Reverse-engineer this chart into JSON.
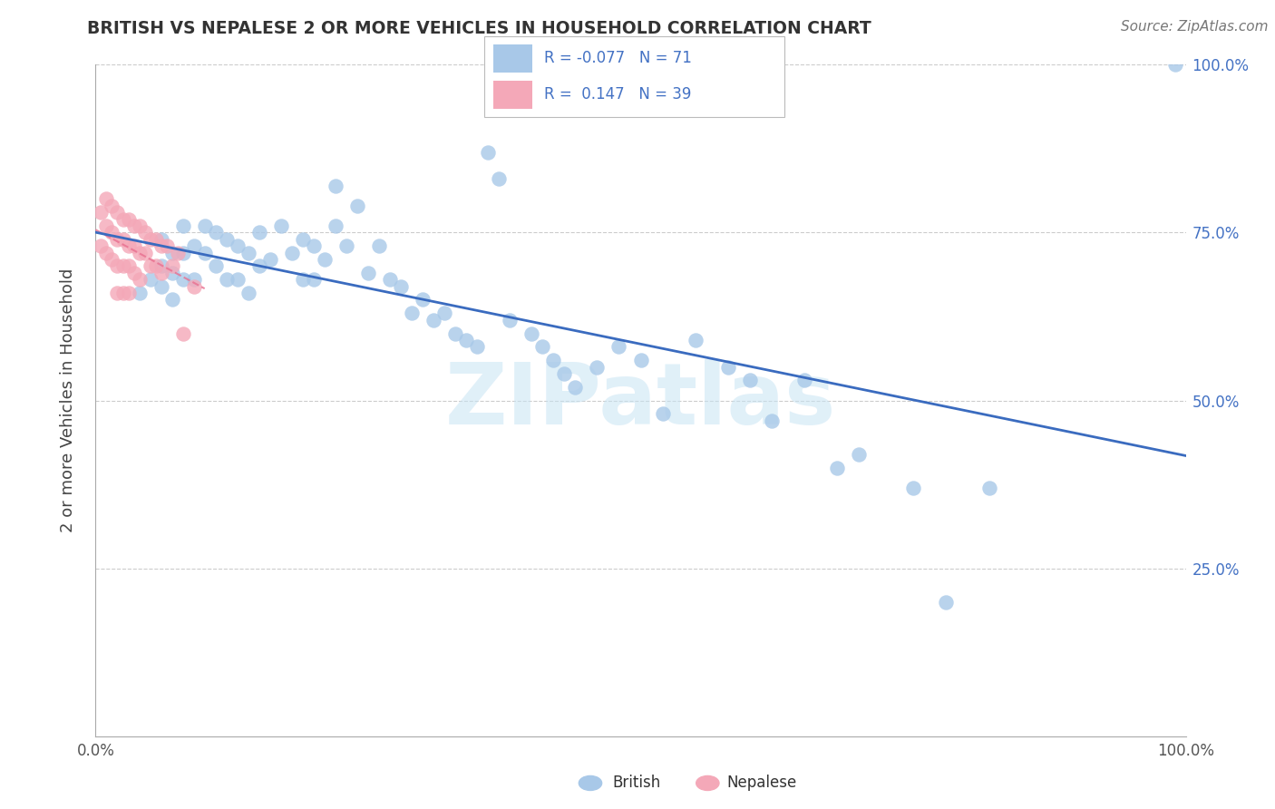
{
  "title": "BRITISH VS NEPALESE 2 OR MORE VEHICLES IN HOUSEHOLD CORRELATION CHART",
  "source": "Source: ZipAtlas.com",
  "ylabel": "2 or more Vehicles in Household",
  "xlim": [
    0,
    1
  ],
  "ylim": [
    0,
    1
  ],
  "british_color": "#a8c8e8",
  "british_edge_color": "#a8c8e8",
  "nepalese_color": "#f4a8b8",
  "nepalese_edge_color": "#f4a8b8",
  "british_line_color": "#3a6bbf",
  "nepalese_line_color": "#e87090",
  "british_R": -0.077,
  "british_N": 71,
  "nepalese_R": 0.147,
  "nepalese_N": 39,
  "watermark_text": "ZIPatlas",
  "watermark_color": "#c8e4f4",
  "grid_color": "#cccccc",
  "right_tick_color": "#4472c4",
  "legend_text_color": "#4472c4",
  "title_color": "#333333",
  "source_color": "#777777",
  "british_x": [
    0.04,
    0.05,
    0.06,
    0.06,
    0.06,
    0.07,
    0.07,
    0.07,
    0.08,
    0.08,
    0.08,
    0.09,
    0.09,
    0.1,
    0.1,
    0.11,
    0.11,
    0.12,
    0.12,
    0.13,
    0.13,
    0.14,
    0.14,
    0.15,
    0.15,
    0.16,
    0.17,
    0.18,
    0.19,
    0.19,
    0.2,
    0.2,
    0.21,
    0.22,
    0.22,
    0.23,
    0.24,
    0.25,
    0.26,
    0.27,
    0.28,
    0.29,
    0.3,
    0.31,
    0.32,
    0.33,
    0.34,
    0.35,
    0.36,
    0.37,
    0.38,
    0.4,
    0.41,
    0.42,
    0.43,
    0.44,
    0.46,
    0.48,
    0.5,
    0.52,
    0.55,
    0.58,
    0.6,
    0.62,
    0.65,
    0.68,
    0.7,
    0.75,
    0.78,
    0.82,
    0.99
  ],
  "british_y": [
    0.66,
    0.68,
    0.74,
    0.7,
    0.67,
    0.72,
    0.69,
    0.65,
    0.76,
    0.72,
    0.68,
    0.73,
    0.68,
    0.76,
    0.72,
    0.75,
    0.7,
    0.74,
    0.68,
    0.73,
    0.68,
    0.72,
    0.66,
    0.75,
    0.7,
    0.71,
    0.76,
    0.72,
    0.74,
    0.68,
    0.73,
    0.68,
    0.71,
    0.82,
    0.76,
    0.73,
    0.79,
    0.69,
    0.73,
    0.68,
    0.67,
    0.63,
    0.65,
    0.62,
    0.63,
    0.6,
    0.59,
    0.58,
    0.87,
    0.83,
    0.62,
    0.6,
    0.58,
    0.56,
    0.54,
    0.52,
    0.55,
    0.58,
    0.56,
    0.48,
    0.59,
    0.55,
    0.53,
    0.47,
    0.53,
    0.4,
    0.42,
    0.37,
    0.2,
    0.37,
    1.0
  ],
  "nepalese_x": [
    0.005,
    0.005,
    0.01,
    0.01,
    0.01,
    0.015,
    0.015,
    0.015,
    0.02,
    0.02,
    0.02,
    0.02,
    0.025,
    0.025,
    0.025,
    0.025,
    0.03,
    0.03,
    0.03,
    0.03,
    0.035,
    0.035,
    0.035,
    0.04,
    0.04,
    0.04,
    0.045,
    0.045,
    0.05,
    0.05,
    0.055,
    0.055,
    0.06,
    0.06,
    0.065,
    0.07,
    0.075,
    0.08,
    0.09
  ],
  "nepalese_y": [
    0.78,
    0.73,
    0.8,
    0.76,
    0.72,
    0.79,
    0.75,
    0.71,
    0.78,
    0.74,
    0.7,
    0.66,
    0.77,
    0.74,
    0.7,
    0.66,
    0.77,
    0.73,
    0.7,
    0.66,
    0.76,
    0.73,
    0.69,
    0.76,
    0.72,
    0.68,
    0.75,
    0.72,
    0.74,
    0.7,
    0.74,
    0.7,
    0.73,
    0.69,
    0.73,
    0.7,
    0.72,
    0.6,
    0.67
  ]
}
